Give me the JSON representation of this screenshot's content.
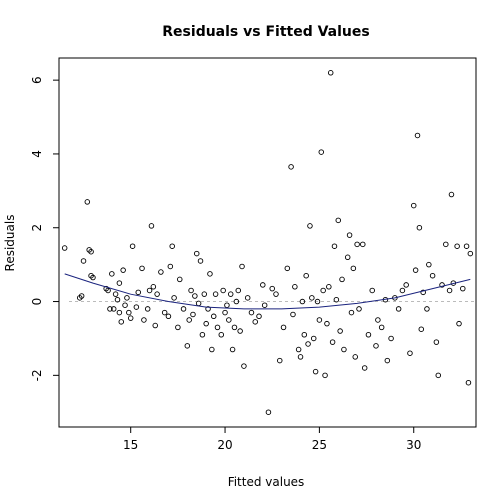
{
  "chart_data": {
    "type": "scatter",
    "title": "Residuals vs Fitted Values",
    "xlabel": "Fitted values",
    "ylabel": "Residuals",
    "xlim": [
      11.2,
      33.3
    ],
    "ylim": [
      -3.4,
      6.6
    ],
    "xticks": [
      15,
      20,
      25,
      30
    ],
    "yticks": [
      -2,
      0,
      2,
      4,
      6
    ],
    "zero_line": true,
    "grid": false,
    "smooth": {
      "x": [
        11.5,
        13,
        15,
        17,
        19,
        21,
        23,
        25,
        27,
        29,
        31,
        33
      ],
      "y": [
        0.75,
        0.5,
        0.2,
        0.0,
        -0.15,
        -0.2,
        -0.2,
        -0.15,
        -0.05,
        0.1,
        0.35,
        0.6
      ]
    },
    "points": [
      [
        11.5,
        1.45
      ],
      [
        12.3,
        0.1
      ],
      [
        12.4,
        0.15
      ],
      [
        12.5,
        1.1
      ],
      [
        12.7,
        2.7
      ],
      [
        12.8,
        1.4
      ],
      [
        12.9,
        1.35
      ],
      [
        12.9,
        0.7
      ],
      [
        13.0,
        0.65
      ],
      [
        13.7,
        0.35
      ],
      [
        13.8,
        0.3
      ],
      [
        13.9,
        -0.2
      ],
      [
        14.0,
        0.75
      ],
      [
        14.1,
        -0.2
      ],
      [
        14.2,
        0.2
      ],
      [
        14.3,
        0.05
      ],
      [
        14.4,
        -0.3
      ],
      [
        14.4,
        0.5
      ],
      [
        14.5,
        -0.55
      ],
      [
        14.6,
        0.85
      ],
      [
        14.7,
        -0.1
      ],
      [
        14.8,
        0.1
      ],
      [
        14.9,
        -0.3
      ],
      [
        15.0,
        -0.45
      ],
      [
        15.1,
        1.5
      ],
      [
        15.3,
        -0.15
      ],
      [
        15.4,
        0.25
      ],
      [
        15.6,
        0.9
      ],
      [
        15.7,
        -0.5
      ],
      [
        15.9,
        -0.2
      ],
      [
        16.0,
        0.3
      ],
      [
        16.1,
        2.05
      ],
      [
        16.2,
        0.4
      ],
      [
        16.3,
        -0.65
      ],
      [
        16.4,
        0.2
      ],
      [
        16.6,
        0.8
      ],
      [
        16.8,
        -0.3
      ],
      [
        17.0,
        -0.4
      ],
      [
        17.1,
        0.95
      ],
      [
        17.2,
        1.5
      ],
      [
        17.3,
        0.1
      ],
      [
        17.5,
        -0.7
      ],
      [
        17.6,
        0.6
      ],
      [
        17.8,
        -0.2
      ],
      [
        18.0,
        -1.2
      ],
      [
        18.1,
        -0.5
      ],
      [
        18.2,
        0.3
      ],
      [
        18.3,
        -0.35
      ],
      [
        18.4,
        0.15
      ],
      [
        18.5,
        1.3
      ],
      [
        18.6,
        -0.05
      ],
      [
        18.7,
        1.1
      ],
      [
        18.8,
        -0.9
      ],
      [
        18.9,
        0.2
      ],
      [
        19.0,
        -0.6
      ],
      [
        19.1,
        -0.2
      ],
      [
        19.2,
        0.75
      ],
      [
        19.3,
        -1.3
      ],
      [
        19.4,
        -0.4
      ],
      [
        19.5,
        0.2
      ],
      [
        19.6,
        -0.7
      ],
      [
        19.8,
        -0.9
      ],
      [
        19.9,
        0.3
      ],
      [
        20.0,
        -0.3
      ],
      [
        20.1,
        -0.1
      ],
      [
        20.2,
        -0.5
      ],
      [
        20.3,
        0.2
      ],
      [
        20.4,
        -1.3
      ],
      [
        20.5,
        -0.7
      ],
      [
        20.6,
        0.0
      ],
      [
        20.7,
        0.3
      ],
      [
        20.8,
        -0.8
      ],
      [
        20.9,
        0.95
      ],
      [
        21.0,
        -1.75
      ],
      [
        21.2,
        0.1
      ],
      [
        21.4,
        -0.3
      ],
      [
        21.6,
        -0.55
      ],
      [
        21.8,
        -0.4
      ],
      [
        22.0,
        0.45
      ],
      [
        22.1,
        -0.1
      ],
      [
        22.3,
        -3.0
      ],
      [
        22.5,
        0.35
      ],
      [
        22.7,
        0.2
      ],
      [
        22.9,
        -1.6
      ],
      [
        23.1,
        -0.7
      ],
      [
        23.3,
        0.9
      ],
      [
        23.5,
        3.65
      ],
      [
        23.6,
        -0.35
      ],
      [
        23.7,
        0.4
      ],
      [
        23.9,
        -1.3
      ],
      [
        24.0,
        -1.5
      ],
      [
        24.1,
        0.0
      ],
      [
        24.2,
        -0.9
      ],
      [
        24.3,
        0.7
      ],
      [
        24.4,
        -1.15
      ],
      [
        24.5,
        2.05
      ],
      [
        24.6,
        0.1
      ],
      [
        24.7,
        -1.0
      ],
      [
        24.8,
        -1.9
      ],
      [
        24.9,
        0.0
      ],
      [
        25.0,
        -0.5
      ],
      [
        25.1,
        4.05
      ],
      [
        25.2,
        0.3
      ],
      [
        25.3,
        -2.0
      ],
      [
        25.4,
        -0.6
      ],
      [
        25.5,
        0.4
      ],
      [
        25.6,
        6.2
      ],
      [
        25.7,
        -1.1
      ],
      [
        25.8,
        1.5
      ],
      [
        25.9,
        0.05
      ],
      [
        26.0,
        2.2
      ],
      [
        26.1,
        -0.8
      ],
      [
        26.2,
        0.6
      ],
      [
        26.3,
        -1.3
      ],
      [
        26.5,
        1.2
      ],
      [
        26.6,
        1.8
      ],
      [
        26.7,
        -0.3
      ],
      [
        26.8,
        0.9
      ],
      [
        26.9,
        -1.5
      ],
      [
        27.0,
        1.55
      ],
      [
        27.1,
        -0.2
      ],
      [
        27.3,
        1.55
      ],
      [
        27.4,
        -1.8
      ],
      [
        27.6,
        -0.9
      ],
      [
        27.8,
        0.3
      ],
      [
        28.0,
        -1.2
      ],
      [
        28.1,
        -0.5
      ],
      [
        28.3,
        -0.7
      ],
      [
        28.5,
        0.05
      ],
      [
        28.6,
        -1.6
      ],
      [
        28.8,
        -1.0
      ],
      [
        29.0,
        0.1
      ],
      [
        29.2,
        -0.2
      ],
      [
        29.4,
        0.3
      ],
      [
        29.6,
        0.45
      ],
      [
        29.8,
        -1.4
      ],
      [
        30.0,
        2.6
      ],
      [
        30.1,
        0.85
      ],
      [
        30.2,
        4.5
      ],
      [
        30.3,
        2.0
      ],
      [
        30.4,
        -0.75
      ],
      [
        30.5,
        0.25
      ],
      [
        30.7,
        -0.2
      ],
      [
        30.8,
        1.0
      ],
      [
        31.0,
        0.7
      ],
      [
        31.2,
        -1.1
      ],
      [
        31.3,
        -2.0
      ],
      [
        31.5,
        0.45
      ],
      [
        31.7,
        1.55
      ],
      [
        31.9,
        0.3
      ],
      [
        32.0,
        2.9
      ],
      [
        32.1,
        0.5
      ],
      [
        32.3,
        1.5
      ],
      [
        32.4,
        -0.6
      ],
      [
        32.6,
        0.35
      ],
      [
        32.8,
        1.5
      ],
      [
        32.9,
        -2.2
      ],
      [
        33.0,
        1.3
      ]
    ]
  }
}
